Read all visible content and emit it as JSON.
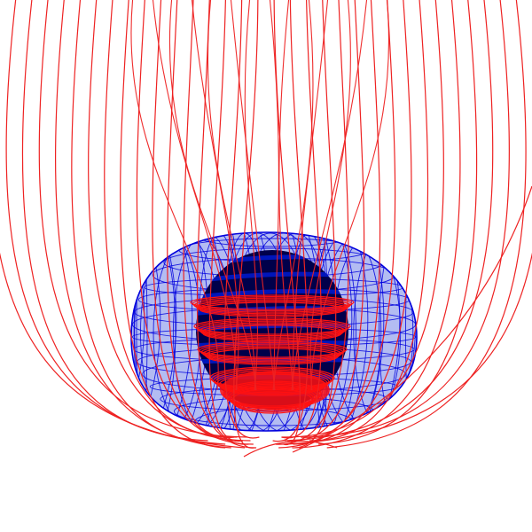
{
  "scene": {
    "background": "#ffffff",
    "shell_fill": "#9aa6ee",
    "shell_wire": "#0000dd",
    "core_fill": "#00004a",
    "core_band": "#0018c8",
    "field_line": "#ee2222",
    "field_band": "#ff1111",
    "glyphs": [
      "wireframe-torus-shell",
      "dark-core-sphere",
      "magnetic-field-lines"
    ],
    "field_line_count": 34,
    "field_band_count": 5
  }
}
